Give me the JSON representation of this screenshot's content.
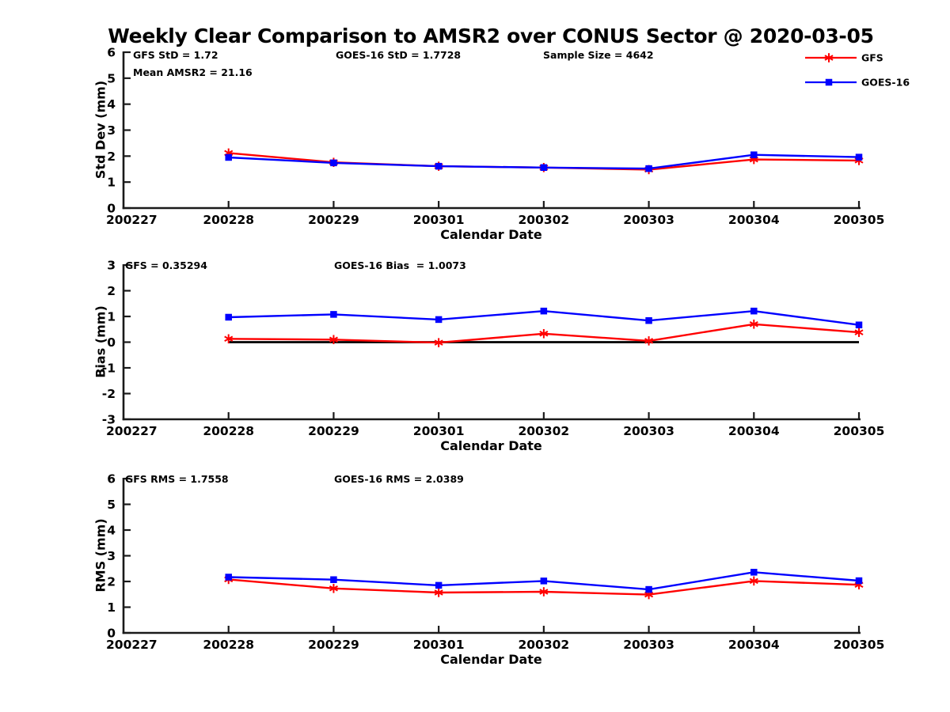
{
  "title": "Weekly Clear Comparison to AMSR2 over CONUS Sector @ 2020-03-05",
  "legend": {
    "entries": [
      {
        "label": "GFS",
        "color": "#ff0000",
        "marker": "asterisk"
      },
      {
        "label": "GOES-16",
        "color": "#0000ff",
        "marker": "square"
      }
    ]
  },
  "colors": {
    "gfs": "#ff0000",
    "goes16": "#0000ff",
    "axis": "#1a1a1a",
    "zero_line": "#000000"
  },
  "chart_data": [
    {
      "type": "line",
      "name": "std_dev_panel",
      "ylabel": "Std Dev (mm)",
      "xlabel": "Calendar Date",
      "ylim": [
        0,
        6
      ],
      "ytick_step": 1,
      "grid": false,
      "categories": [
        "200227",
        "200228",
        "200229",
        "200301",
        "200302",
        "200303",
        "200304",
        "200305"
      ],
      "annotations": {
        "gfs": "GFS StD = 1.72",
        "mean_amsr2": "Mean AMSR2 = 21.16",
        "goes": "GOES-16 StD = 1.7728",
        "sample_size": "Sample Size = 4642"
      },
      "zero_line": false,
      "series": [
        {
          "name": "GFS",
          "color": "#ff0000",
          "marker": "asterisk",
          "x": [
            1,
            2,
            3,
            4,
            5,
            6,
            7
          ],
          "values": [
            2.12,
            1.76,
            1.61,
            1.56,
            1.48,
            1.87,
            1.83
          ]
        },
        {
          "name": "GOES-16",
          "color": "#0000ff",
          "marker": "square",
          "x": [
            1,
            2,
            3,
            4,
            5,
            6,
            7
          ],
          "values": [
            1.95,
            1.74,
            1.61,
            1.56,
            1.52,
            2.05,
            1.96
          ]
        }
      ]
    },
    {
      "type": "line",
      "name": "bias_panel",
      "ylabel": "Bias (mm)",
      "xlabel": "Calendar Date",
      "ylim": [
        -3,
        3
      ],
      "ytick_step": 1,
      "grid": false,
      "categories": [
        "200227",
        "200228",
        "200229",
        "200301",
        "200302",
        "200303",
        "200304",
        "200305"
      ],
      "annotations": {
        "gfs": "GFS = 0.35294",
        "goes": "GOES-16 Bias  = 1.0073"
      },
      "zero_line": true,
      "series": [
        {
          "name": "GFS",
          "color": "#ff0000",
          "marker": "asterisk",
          "x": [
            1,
            2,
            3,
            4,
            5,
            6,
            7
          ],
          "values": [
            0.13,
            0.1,
            -0.02,
            0.33,
            0.05,
            0.7,
            0.38
          ]
        },
        {
          "name": "GOES-16",
          "color": "#0000ff",
          "marker": "square",
          "x": [
            1,
            2,
            3,
            4,
            5,
            6,
            7
          ],
          "values": [
            0.97,
            1.08,
            0.88,
            1.21,
            0.84,
            1.21,
            0.67
          ]
        }
      ]
    },
    {
      "type": "line",
      "name": "rms_panel",
      "ylabel": "RMS (mm)",
      "xlabel": "Calendar Date",
      "ylim": [
        0,
        6
      ],
      "ytick_step": 1,
      "grid": false,
      "categories": [
        "200227",
        "200228",
        "200229",
        "200301",
        "200302",
        "200303",
        "200304",
        "200305"
      ],
      "annotations": {
        "gfs": "GFS RMS = 1.7558",
        "goes": "GOES-16 RMS = 2.0389"
      },
      "zero_line": false,
      "series": [
        {
          "name": "GFS",
          "color": "#ff0000",
          "marker": "asterisk",
          "x": [
            1,
            2,
            3,
            4,
            5,
            6,
            7
          ],
          "values": [
            2.08,
            1.73,
            1.57,
            1.6,
            1.49,
            2.02,
            1.87
          ]
        },
        {
          "name": "GOES-16",
          "color": "#0000ff",
          "marker": "square",
          "x": [
            1,
            2,
            3,
            4,
            5,
            6,
            7
          ],
          "values": [
            2.17,
            2.07,
            1.85,
            2.02,
            1.69,
            2.36,
            2.03
          ]
        }
      ]
    }
  ]
}
